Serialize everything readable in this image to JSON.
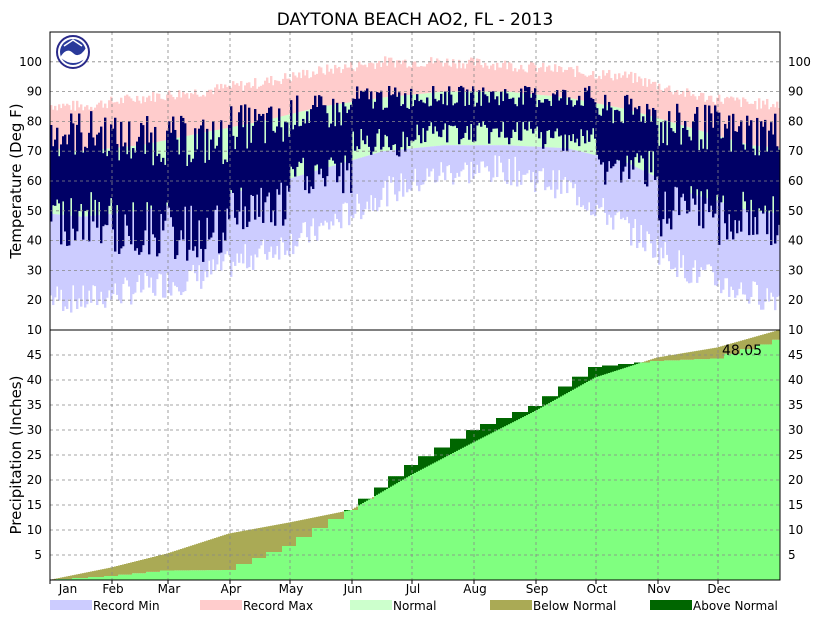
{
  "chart_data": {
    "type": "area",
    "title": "DAYTONA BEACH AO2, FL - 2013",
    "months": [
      "Jan",
      "Feb",
      "Mar",
      "Apr",
      "May",
      "Jun",
      "Jul",
      "Aug",
      "Sep",
      "Oct",
      "Nov",
      "Dec"
    ],
    "temperature": {
      "ylabel": "Temperature (Deg F)",
      "ylim": [
        10,
        110
      ],
      "yticks": [
        10,
        20,
        30,
        40,
        50,
        60,
        70,
        80,
        90,
        100
      ],
      "grid": true,
      "normal_high_monthly": [
        70,
        72,
        76,
        80,
        85,
        88,
        90,
        90,
        88,
        84,
        78,
        72
      ],
      "normal_low_monthly": [
        48,
        50,
        54,
        58,
        64,
        70,
        72,
        72,
        71,
        66,
        56,
        50
      ],
      "record_high_monthly": [
        85,
        88,
        90,
        93,
        97,
        100,
        100,
        99,
        97,
        95,
        89,
        86
      ],
      "record_low_monthly": [
        20,
        24,
        28,
        36,
        44,
        56,
        63,
        64,
        58,
        44,
        30,
        22
      ],
      "observed_monthly_range": [
        {
          "month": "Jan",
          "low": 38,
          "high": 84
        },
        {
          "month": "Feb",
          "low": 34,
          "high": 82
        },
        {
          "month": "Mar",
          "low": 32,
          "high": 82
        },
        {
          "month": "Apr",
          "low": 42,
          "high": 86
        },
        {
          "month": "May",
          "low": 55,
          "high": 89
        },
        {
          "month": "Jun",
          "low": 68,
          "high": 92
        },
        {
          "month": "Jul",
          "low": 72,
          "high": 92
        },
        {
          "month": "Aug",
          "low": 72,
          "high": 92
        },
        {
          "month": "Sep",
          "low": 70,
          "high": 92
        },
        {
          "month": "Oct",
          "low": 58,
          "high": 89
        },
        {
          "month": "Nov",
          "low": 40,
          "high": 86
        },
        {
          "month": "Dec",
          "low": 38,
          "high": 84
        }
      ]
    },
    "precipitation": {
      "ylabel": "Precipitation (Inches)",
      "ylim": [
        0,
        50
      ],
      "yticks": [
        5,
        10,
        15,
        20,
        25,
        30,
        35,
        40,
        45
      ],
      "grid": true,
      "total_label": "48.05",
      "normal_cumulative_month_end": [
        0,
        2.5,
        5.3,
        9.3,
        11.5,
        14.0,
        21.0,
        27.5,
        33.8,
        40.5,
        44.5,
        46.5,
        50.0
      ],
      "observed_cumulative_month_end": [
        0,
        0.8,
        1.9,
        2.0,
        6.8,
        14.0,
        23.0,
        30.0,
        34.8,
        42.6,
        43.8,
        44.3,
        48.05
      ]
    },
    "legend": [
      {
        "label": "Record Min",
        "color": "#ccccff"
      },
      {
        "label": "Record Max",
        "color": "#ffcccc"
      },
      {
        "label": "Normal",
        "color": "#ccffcc"
      },
      {
        "label": "Below Normal",
        "color": "#aaaa55"
      },
      {
        "label": "Above Normal",
        "color": "#006600"
      }
    ],
    "colors": {
      "observed_temp": "#000066",
      "observed_precip": "#80ff80",
      "grid": "#888888"
    }
  }
}
